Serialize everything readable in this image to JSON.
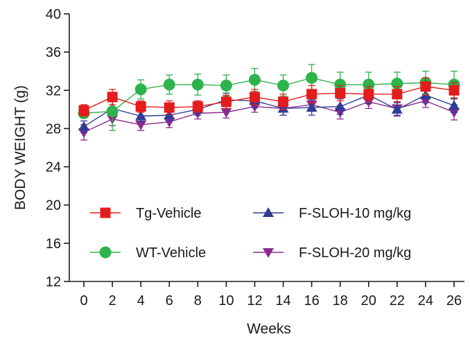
{
  "chart_data": {
    "type": "line",
    "title": "",
    "xlabel": "Weeks",
    "ylabel": "BODY WEIGHT (g)",
    "xlim": [
      0,
      26
    ],
    "ylim": [
      12,
      40
    ],
    "x": [
      0,
      2,
      4,
      6,
      8,
      10,
      12,
      14,
      16,
      18,
      20,
      22,
      24,
      26
    ],
    "xticks": [
      0,
      2,
      4,
      6,
      8,
      10,
      12,
      14,
      16,
      18,
      20,
      22,
      24,
      26
    ],
    "yticks": [
      12,
      16,
      20,
      24,
      28,
      32,
      36,
      40
    ],
    "grid": false,
    "legend": "inside-lower",
    "series": [
      {
        "name": "Tg-Vehicle",
        "color": "#e41c1c",
        "marker": "square",
        "values": [
          29.9,
          31.3,
          30.3,
          30.2,
          30.3,
          30.8,
          31.3,
          30.8,
          31.6,
          31.7,
          31.6,
          31.6,
          32.4,
          32.0
        ],
        "errors": [
          0.6,
          0.8,
          0.6,
          0.7,
          0.6,
          0.7,
          0.8,
          0.8,
          0.9,
          0.8,
          0.8,
          0.8,
          0.9,
          0.8
        ]
      },
      {
        "name": "WT-Vehicle",
        "color": "#2db34a",
        "marker": "circle",
        "values": [
          29.6,
          29.8,
          32.1,
          32.6,
          32.6,
          32.5,
          33.1,
          32.5,
          33.3,
          32.6,
          32.6,
          32.7,
          32.8,
          32.6
        ],
        "errors": [
          0.5,
          2.0,
          1.0,
          1.0,
          1.1,
          1.1,
          1.2,
          1.1,
          1.4,
          1.3,
          1.3,
          1.2,
          1.2,
          1.4
        ]
      },
      {
        "name": "F-SLOH-10 mg/kg",
        "color": "#2e3d96",
        "marker": "triangle-up",
        "values": [
          28.2,
          30.1,
          29.3,
          29.4,
          30.0,
          31.0,
          30.9,
          30.1,
          30.2,
          30.3,
          31.5,
          30.0,
          31.5,
          30.4
        ],
        "errors": [
          0.6,
          0.7,
          0.6,
          0.6,
          0.6,
          0.7,
          0.7,
          0.7,
          0.8,
          0.8,
          0.9,
          0.7,
          0.8,
          0.7
        ]
      },
      {
        "name": "F-SLOH-20 mg/kg",
        "color": "#8b2a8e",
        "marker": "triangle-down",
        "values": [
          27.6,
          29.0,
          28.4,
          28.7,
          29.6,
          29.7,
          30.3,
          30.1,
          30.5,
          29.7,
          30.8,
          30.1,
          30.9,
          29.7
        ],
        "errors": [
          0.8,
          0.7,
          0.6,
          0.6,
          0.6,
          0.6,
          0.6,
          0.7,
          0.7,
          0.7,
          0.7,
          0.7,
          0.7,
          0.8
        ]
      }
    ]
  }
}
